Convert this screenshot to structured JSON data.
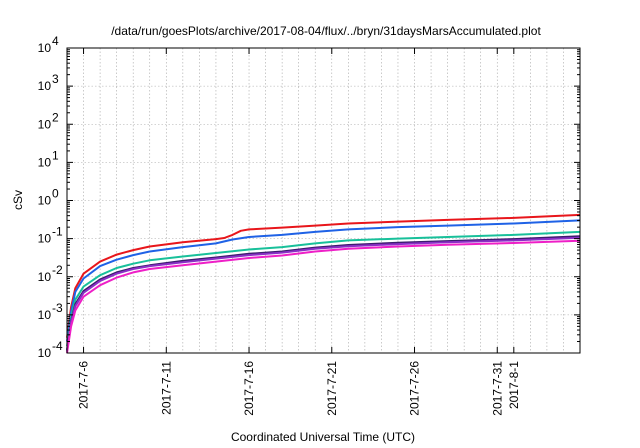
{
  "chart_data": {
    "type": "line",
    "title": "/data/run/goesPlots/archive/2017-08-04/flux/../bryn/31daysMarsAccumulated.plot",
    "xlabel": "Coordinated Universal Time (UTC)",
    "ylabel": "cSv",
    "y_scale": "log",
    "ylim": [
      0.0001,
      10000
    ],
    "xlim": [
      "2017-07-05",
      "2017-08-05"
    ],
    "grid": true,
    "legend": "none",
    "x_ticks": [
      "2017-7-6",
      "2017-7-11",
      "2017-7-16",
      "2017-7-21",
      "2017-7-26",
      "2017-7-31",
      "2017-8-1"
    ],
    "y_ticks": [
      {
        "value": 0.0001,
        "base": "10",
        "exp": "-4"
      },
      {
        "value": 0.001,
        "base": "10",
        "exp": "-3"
      },
      {
        "value": 0.01,
        "base": "10",
        "exp": "-2"
      },
      {
        "value": 0.1,
        "base": "10",
        "exp": "-1"
      },
      {
        "value": 1,
        "base": "10",
        "exp": "0"
      },
      {
        "value": 10,
        "base": "10",
        "exp": "1"
      },
      {
        "value": 100,
        "base": "10",
        "exp": "2"
      },
      {
        "value": 1000,
        "base": "10",
        "exp": "3"
      },
      {
        "value": 10000,
        "base": "10",
        "exp": "4"
      }
    ],
    "series": [
      {
        "color": "#e8161b",
        "x": [
          "2017-07-05",
          "2017-07-05 06:00",
          "2017-07-05 12:00",
          "2017-07-06",
          "2017-07-07",
          "2017-07-08",
          "2017-07-09",
          "2017-07-10",
          "2017-07-12",
          "2017-07-14",
          "2017-07-14 12:00",
          "2017-07-15",
          "2017-07-15 12:00",
          "2017-07-16",
          "2017-07-18",
          "2017-07-20",
          "2017-07-22",
          "2017-07-25",
          "2017-07-28",
          "2017-08-01",
          "2017-08-05"
        ],
        "y": [
          0.00025,
          0.0016,
          0.005,
          0.012,
          0.025,
          0.038,
          0.05,
          0.062,
          0.08,
          0.097,
          0.104,
          0.125,
          0.16,
          0.175,
          0.195,
          0.22,
          0.25,
          0.28,
          0.31,
          0.35,
          0.42
        ]
      },
      {
        "color": "#1f62e6",
        "x": [
          "2017-07-05",
          "2017-07-05 06:00",
          "2017-07-05 12:00",
          "2017-07-06",
          "2017-07-07",
          "2017-07-08",
          "2017-07-09",
          "2017-07-10",
          "2017-07-12",
          "2017-07-14",
          "2017-07-15",
          "2017-07-16",
          "2017-07-18",
          "2017-07-20",
          "2017-07-22",
          "2017-07-25",
          "2017-07-28",
          "2017-08-01",
          "2017-08-05"
        ],
        "y": [
          0.0002,
          0.0012,
          0.004,
          0.009,
          0.019,
          0.028,
          0.037,
          0.046,
          0.06,
          0.075,
          0.095,
          0.11,
          0.125,
          0.15,
          0.175,
          0.2,
          0.22,
          0.25,
          0.3
        ]
      },
      {
        "color": "#18c09a",
        "x": [
          "2017-07-05",
          "2017-07-05 06:00",
          "2017-07-05 12:00",
          "2017-07-06",
          "2017-07-07",
          "2017-07-08",
          "2017-07-09",
          "2017-07-10",
          "2017-07-12",
          "2017-07-14",
          "2017-07-16",
          "2017-07-18",
          "2017-07-20",
          "2017-07-22",
          "2017-07-25",
          "2017-07-28",
          "2017-08-01",
          "2017-08-05"
        ],
        "y": [
          0.00015,
          0.0009,
          0.0025,
          0.0055,
          0.011,
          0.017,
          0.022,
          0.027,
          0.034,
          0.042,
          0.052,
          0.06,
          0.075,
          0.09,
          0.1,
          0.11,
          0.125,
          0.15
        ]
      },
      {
        "color": "#3c1b6e",
        "x": [
          "2017-07-05",
          "2017-07-05 06:00",
          "2017-07-05 12:00",
          "2017-07-06",
          "2017-07-07",
          "2017-07-08",
          "2017-07-09",
          "2017-07-10",
          "2017-07-12",
          "2017-07-14",
          "2017-07-16",
          "2017-07-18",
          "2017-07-20",
          "2017-07-22",
          "2017-07-25",
          "2017-07-28",
          "2017-08-01",
          "2017-08-05"
        ],
        "y": [
          0.00012,
          0.0007,
          0.0019,
          0.0042,
          0.0085,
          0.013,
          0.017,
          0.02,
          0.026,
          0.032,
          0.04,
          0.046,
          0.058,
          0.068,
          0.078,
          0.086,
          0.097,
          0.115
        ]
      },
      {
        "color": "#8a2fc6",
        "x": [
          "2017-07-05",
          "2017-07-05 06:00",
          "2017-07-05 12:00",
          "2017-07-06",
          "2017-07-07",
          "2017-07-08",
          "2017-07-09",
          "2017-07-10",
          "2017-07-12",
          "2017-07-14",
          "2017-07-16",
          "2017-07-18",
          "2017-07-20",
          "2017-07-22",
          "2017-07-25",
          "2017-07-28",
          "2017-08-01",
          "2017-08-05"
        ],
        "y": [
          0.00011,
          0.00065,
          0.0017,
          0.0038,
          0.0078,
          0.012,
          0.016,
          0.019,
          0.024,
          0.03,
          0.037,
          0.043,
          0.054,
          0.063,
          0.072,
          0.08,
          0.09,
          0.105
        ]
      },
      {
        "color": "#ee1fc7",
        "x": [
          "2017-07-05",
          "2017-07-05 06:00",
          "2017-07-05 12:00",
          "2017-07-06",
          "2017-07-07",
          "2017-07-08",
          "2017-07-09",
          "2017-07-10",
          "2017-07-12",
          "2017-07-14",
          "2017-07-16",
          "2017-07-18",
          "2017-07-20",
          "2017-07-22",
          "2017-07-25",
          "2017-07-28",
          "2017-08-01",
          "2017-08-05"
        ],
        "y": [
          0.0001,
          0.0005,
          0.0013,
          0.003,
          0.006,
          0.0095,
          0.013,
          0.016,
          0.02,
          0.025,
          0.031,
          0.036,
          0.046,
          0.054,
          0.062,
          0.069,
          0.077,
          0.088
        ]
      }
    ]
  }
}
